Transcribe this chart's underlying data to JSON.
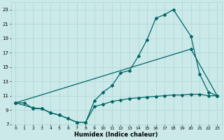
{
  "bg_color": "#cce9e9",
  "grid_color": "#aad4d4",
  "line_color": "#006666",
  "xlabel": "Humidex (Indice chaleur)",
  "xlim": [
    -0.5,
    23.5
  ],
  "ylim": [
    7,
    24
  ],
  "yticks": [
    7,
    9,
    11,
    13,
    15,
    17,
    19,
    21,
    23
  ],
  "xticks": [
    0,
    1,
    2,
    3,
    4,
    5,
    6,
    7,
    8,
    9,
    10,
    11,
    12,
    13,
    14,
    15,
    16,
    17,
    18,
    19,
    20,
    21,
    22,
    23
  ],
  "line1_x": [
    0,
    1,
    2,
    3,
    4,
    5,
    6,
    7,
    8,
    9,
    10,
    11,
    12,
    13,
    14,
    15,
    16,
    17,
    18,
    19,
    20,
    21,
    22,
    23
  ],
  "line1_y": [
    10.0,
    10.0,
    9.2,
    9.2,
    8.6,
    8.3,
    7.8,
    7.3,
    7.3,
    9.5,
    9.8,
    10.2,
    10.4,
    10.6,
    10.7,
    10.8,
    10.9,
    11.0,
    11.1,
    11.1,
    11.2,
    11.2,
    11.0,
    11.0
  ],
  "line2_x": [
    0,
    2,
    3,
    4,
    5,
    6,
    7,
    8,
    9,
    10,
    11,
    12,
    13,
    14,
    15,
    16,
    17,
    18,
    20,
    21,
    22,
    23
  ],
  "line2_y": [
    10.0,
    9.3,
    9.2,
    8.6,
    8.3,
    7.8,
    7.3,
    7.3,
    10.3,
    11.5,
    12.4,
    14.2,
    14.5,
    16.5,
    18.8,
    21.8,
    22.3,
    23.0,
    19.3,
    14.0,
    11.5,
    11.0
  ],
  "line3_x": [
    0,
    20,
    23
  ],
  "line3_y": [
    10.0,
    17.5,
    11.0
  ]
}
